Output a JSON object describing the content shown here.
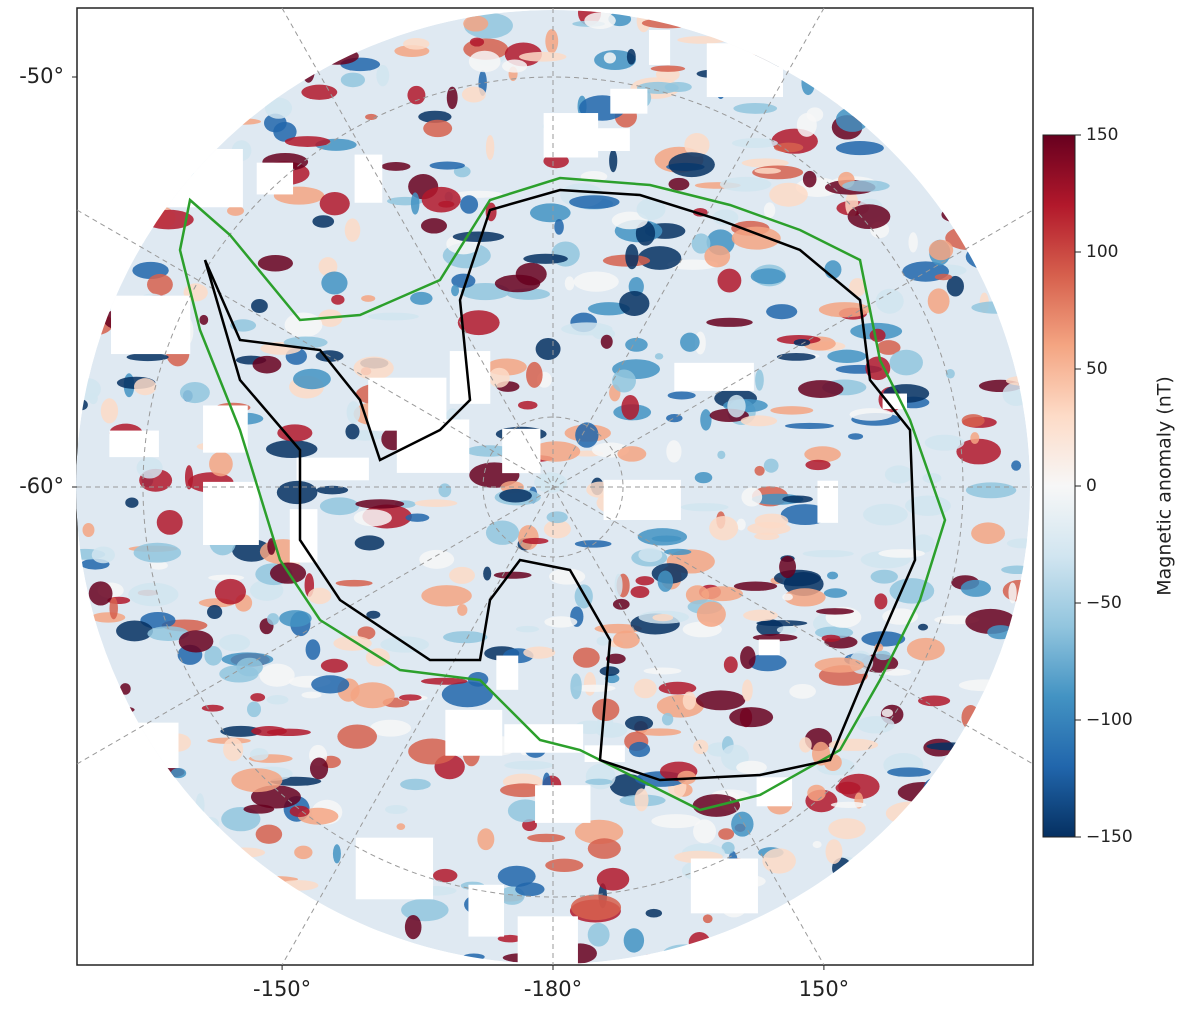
{
  "map": {
    "lat_ticks": [
      {
        "value": -50,
        "label": "-50°"
      },
      {
        "value": -60,
        "label": "-60°"
      }
    ],
    "lon_ticks": [
      {
        "value": -150,
        "label": "-150°"
      },
      {
        "value": -180,
        "label": "-180°"
      },
      {
        "value": 150,
        "label": "150°"
      }
    ],
    "continent_color": "#000000",
    "shelf_color": "#2ca02c"
  },
  "colorbar": {
    "label": "Magnetic anomaly (nT)",
    "lim": [
      -150,
      150
    ],
    "ticks": [
      150,
      100,
      50,
      0,
      {
        "value": -50,
        "label": "−50"
      },
      {
        "value": -100,
        "label": "−100"
      },
      {
        "value": -150,
        "label": "−150"
      }
    ],
    "colormap": [
      "#053061",
      "#2166ac",
      "#4393c3",
      "#92c5de",
      "#d1e5f0",
      "#f7f7f7",
      "#fddbc7",
      "#f4a582",
      "#d6604d",
      "#b2182b",
      "#67001f"
    ]
  }
}
